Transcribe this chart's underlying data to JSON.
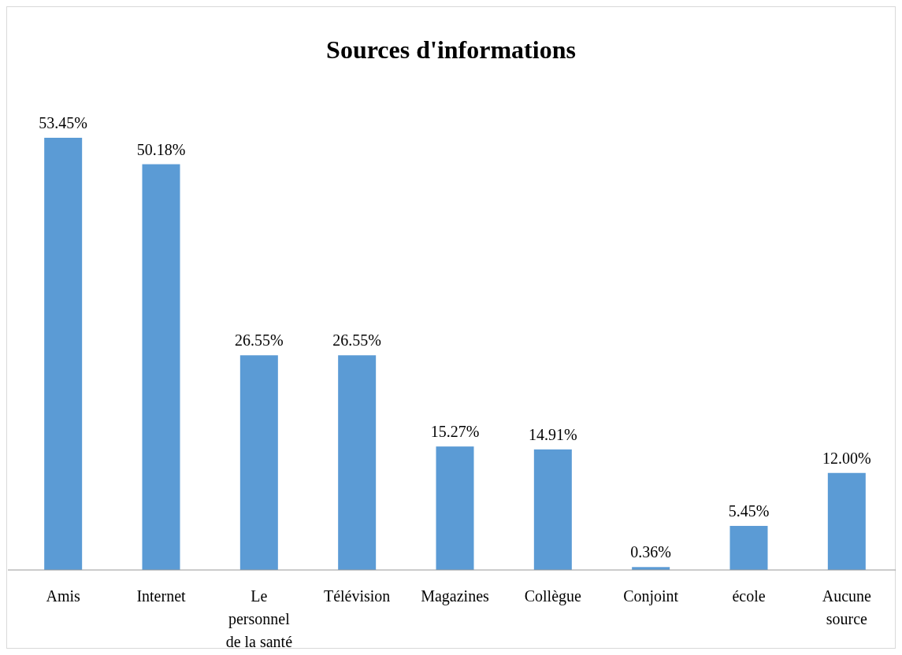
{
  "chart_data": {
    "type": "bar",
    "title": "Sources d'informations",
    "categories": [
      "Amis",
      "Internet",
      "Le personnel de la santé",
      "Télévision",
      "Magazines",
      "Collègue",
      "Conjoint",
      "école",
      "Aucune source"
    ],
    "values": [
      53.45,
      50.18,
      26.55,
      26.55,
      15.27,
      14.91,
      0.36,
      5.45,
      12.0
    ],
    "value_labels": [
      "53.45%",
      "50.18%",
      "26.55%",
      "26.55%",
      "15.27%",
      "14.91%",
      "0.36%",
      "5.45%",
      "12.00%"
    ],
    "color": "#5b9bd5"
  }
}
